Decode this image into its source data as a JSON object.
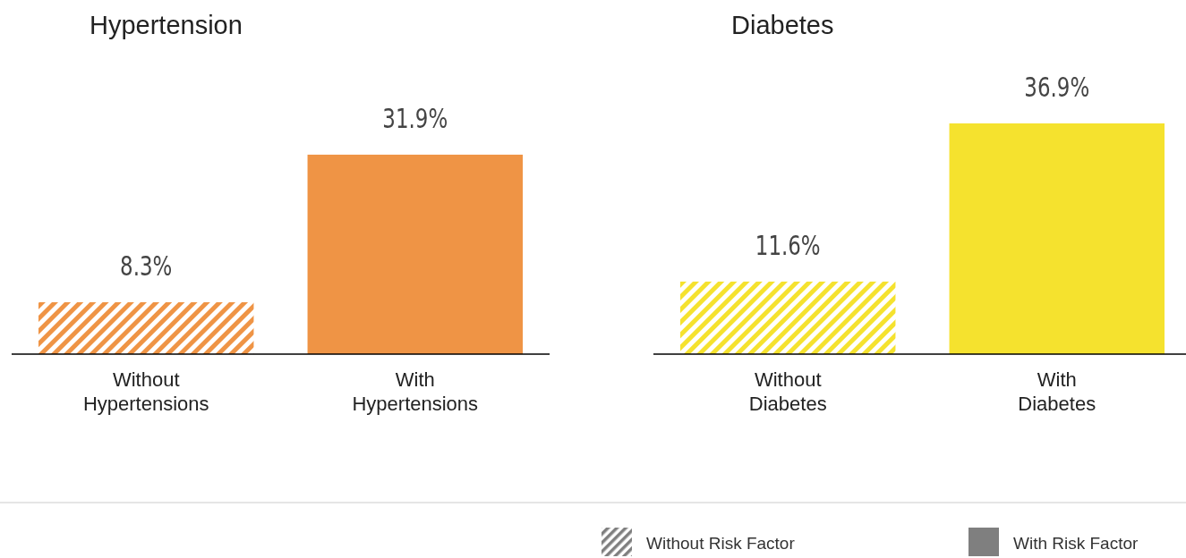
{
  "chart_data": [
    {
      "type": "bar",
      "title": "Hypertension",
      "categories": [
        "Without Hypertensions",
        "With Hypertensions"
      ],
      "values": [
        8.3,
        31.9
      ],
      "colors": [
        "#ef9445",
        "#ef9445"
      ],
      "value_labels": [
        "8.3%",
        "31.9%"
      ],
      "annotations": [
        "Without Risk Factor",
        "With Risk Factor"
      ]
    },
    {
      "type": "bar",
      "title": "Diabetes",
      "categories": [
        "Without Diabetes",
        "With Diabetes"
      ],
      "values": [
        11.6,
        36.9
      ],
      "colors": [
        "#f5e22e",
        "#f5e22e"
      ],
      "value_labels": [
        "11.6%",
        "36.9%"
      ]
    }
  ]
}
